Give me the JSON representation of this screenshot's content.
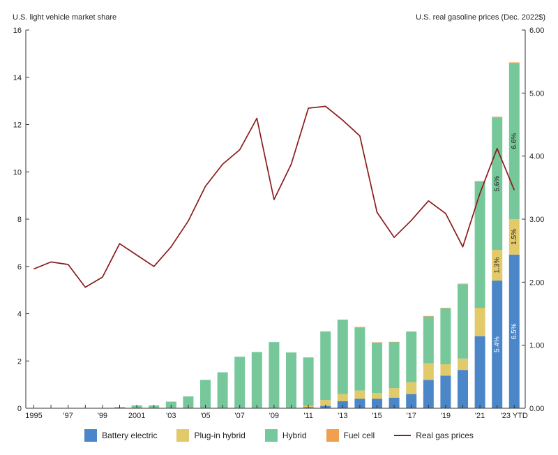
{
  "chart_data": {
    "type": "bar",
    "left_axis_title": "U.S. light vehicle market share",
    "right_axis_title": "U.S. real gasoline prices (Dec. 2022$)",
    "ylim_left": [
      0,
      16
    ],
    "yticks_left": [
      "0",
      "2",
      "4",
      "6",
      "8",
      "10",
      "12",
      "14",
      "16"
    ],
    "ylim_right": [
      0,
      6
    ],
    "yticks_right": [
      "0.00",
      "1.00",
      "2.00",
      "3.00",
      "4.00",
      "5.00",
      "6.00"
    ],
    "grid": false,
    "legend_position": "bottom",
    "x": [
      "1995",
      "1996",
      "1997",
      "1998",
      "1999",
      "2000",
      "2001",
      "2002",
      "2003",
      "2004",
      "2005",
      "2006",
      "2007",
      "2008",
      "2009",
      "2010",
      "2011",
      "2012",
      "2013",
      "2014",
      "2015",
      "2016",
      "2017",
      "2018",
      "2019",
      "2020",
      "2021",
      "2022",
      "2023 YTD"
    ],
    "xtick_labels": [
      "1995",
      "",
      "'97",
      "",
      "'99",
      "",
      "2001",
      "",
      "'03",
      "",
      "'05",
      "",
      "'07",
      "",
      "'09",
      "",
      "'11",
      "",
      "'13",
      "",
      "'15",
      "",
      "'17",
      "",
      "'19",
      "",
      "'21",
      "",
      "'23 YTD"
    ],
    "bar_series": [
      {
        "name": "Battery electric",
        "color": "#4b86c8",
        "values": [
          0,
          0,
          0,
          0,
          0,
          0,
          0,
          0,
          0,
          0,
          0,
          0,
          0,
          0,
          0,
          0,
          0.05,
          0.1,
          0.3,
          0.4,
          0.4,
          0.45,
          0.6,
          1.2,
          1.38,
          1.62,
          3.05,
          5.4,
          6.5
        ]
      },
      {
        "name": "Plug-in hybrid",
        "color": "#e2c96a",
        "values": [
          0,
          0,
          0,
          0,
          0,
          0,
          0,
          0,
          0,
          0,
          0,
          0,
          0,
          0,
          0,
          0,
          0.05,
          0.25,
          0.3,
          0.35,
          0.25,
          0.4,
          0.5,
          0.7,
          0.48,
          0.48,
          1.2,
          1.3,
          1.5
        ]
      },
      {
        "name": "Hybrid",
        "color": "#76c89a",
        "values": [
          0,
          0,
          0,
          0,
          0,
          0.05,
          0.12,
          0.12,
          0.28,
          0.5,
          1.2,
          1.52,
          2.18,
          2.38,
          2.8,
          2.36,
          2.05,
          2.9,
          3.15,
          2.67,
          2.13,
          1.95,
          2.13,
          1.98,
          2.37,
          3.15,
          5.33,
          5.6,
          6.6
        ]
      },
      {
        "name": "Fuel cell",
        "color": "#f0a050",
        "values": [
          0,
          0,
          0,
          0,
          0,
          0,
          0,
          0,
          0,
          0,
          0,
          0,
          0,
          0,
          0,
          0,
          0,
          0,
          0,
          0.02,
          0.01,
          0.01,
          0.02,
          0.02,
          0.02,
          0.02,
          0.03,
          0.03,
          0.03
        ]
      }
    ],
    "line_series": {
      "name": "Real gas prices",
      "color": "#8b1a1a",
      "values": [
        2.21,
        2.32,
        2.28,
        1.92,
        2.08,
        2.61,
        2.43,
        2.25,
        2.56,
        2.97,
        3.52,
        3.87,
        4.1,
        4.6,
        3.31,
        3.87,
        4.76,
        4.79,
        4.57,
        4.32,
        3.11,
        2.71,
        2.98,
        3.29,
        3.09,
        2.56,
        3.41,
        4.12,
        3.46
      ]
    },
    "bar_labels": [
      {
        "index": 27,
        "series": 0,
        "text": "5.4%",
        "color": "#ffffff"
      },
      {
        "index": 27,
        "series": 1,
        "text": "1.3%",
        "color": "#222222"
      },
      {
        "index": 27,
        "series": 2,
        "text": "5.6%",
        "color": "#222222"
      },
      {
        "index": 28,
        "series": 0,
        "text": "6.5%",
        "color": "#ffffff"
      },
      {
        "index": 28,
        "series": 1,
        "text": "1.5%",
        "color": "#222222"
      },
      {
        "index": 28,
        "series": 2,
        "text": "6.6%",
        "color": "#222222"
      }
    ]
  }
}
